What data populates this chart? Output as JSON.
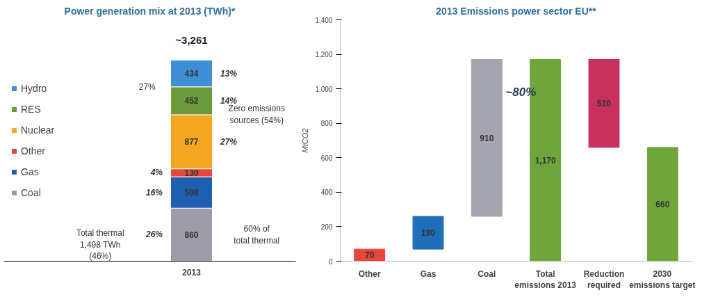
{
  "chart_data": [
    {
      "type": "bar",
      "title": "Power generation mix at 2013 (TWh)*",
      "categories": [
        "2013"
      ],
      "stacked": true,
      "data_labels": true,
      "legend": "left",
      "grid": false,
      "tick_labels": "x",
      "totals": [
        "~3,261"
      ],
      "series": [
        {
          "name": "Coal",
          "color": "#9d9ca8",
          "values": [
            860
          ]
        },
        {
          "name": "Gas",
          "color": "#1f5fb0",
          "values": [
            508
          ]
        },
        {
          "name": "Other",
          "color": "#e8453c",
          "values": [
            130
          ]
        },
        {
          "name": "Nuclear",
          "color": "#f5a623",
          "values": [
            877
          ]
        },
        {
          "name": "RES",
          "color": "#6b9a3a",
          "values": [
            452
          ]
        },
        {
          "name": "Hydro",
          "color": "#3f8fd6",
          "values": [
            434
          ]
        }
      ],
      "annotations": [
        "13%",
        "14%",
        "27%",
        "4%",
        "16%",
        "26%",
        "27%",
        "Zero emissions sources (54%)",
        "60% of total thermal",
        "Total thermal 1,498 TWh (46%)"
      ]
    },
    {
      "type": "bar",
      "title": "2013 Emissions power sector EU**",
      "ylabel": "MtCO2",
      "categories": [
        "Other",
        "Gas",
        "Coal",
        "Total emissions 2013",
        "Reduction required",
        "2030 emissions target"
      ],
      "values": [
        70,
        190,
        910,
        1170,
        510,
        660
      ],
      "base": [
        0,
        70,
        260,
        0,
        660,
        0
      ],
      "colors": [
        "#e8453c",
        "#1f6fb8",
        "#a5a5b0",
        "#6fa53a",
        "#c8305e",
        "#6fa53a"
      ],
      "ylim": [
        0,
        1400
      ],
      "yticks": [
        {
          "value": 0,
          "label": "0"
        },
        {
          "value": 200,
          "label": "200"
        },
        {
          "value": 400,
          "label": "400"
        },
        {
          "value": 600,
          "label": "600"
        },
        {
          "value": 800,
          "label": "800"
        },
        {
          "value": 1000,
          "label": "1,000"
        },
        {
          "value": 1200,
          "label": "1,200"
        },
        {
          "value": 1400,
          "label": "1,400"
        }
      ],
      "value_labels": [
        "70",
        "190",
        "910",
        "1,170",
        "510",
        "660"
      ],
      "grid": false,
      "annotations": [
        "~80%"
      ]
    }
  ]
}
